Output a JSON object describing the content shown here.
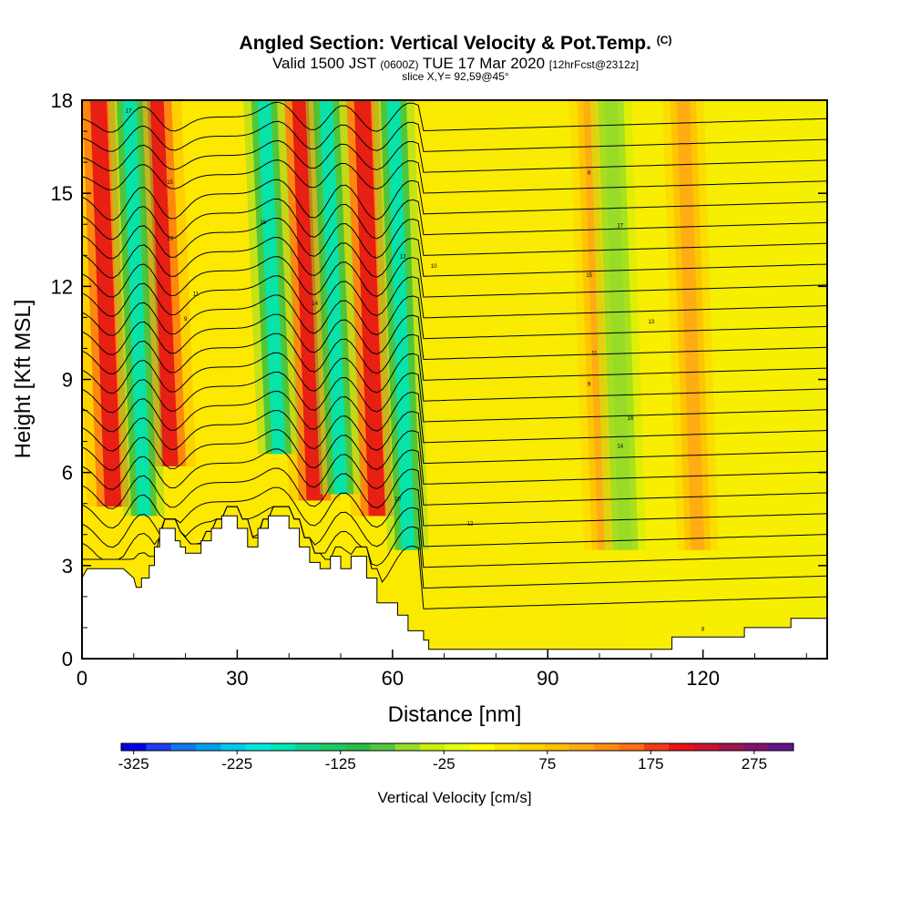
{
  "header": {
    "title_main": "Angled Section: Vertical Velocity & Pot.Temp.",
    "title_mark": "(C)",
    "valid_prefix": "Valid 1500 JST",
    "valid_utc": "(0600Z)",
    "valid_date": "TUE 17 Mar 2020",
    "valid_fcst": "[12hrFcst@2312z]",
    "slice": "slice X,Y= 92,59@45°"
  },
  "chart_data": {
    "type": "heatmap",
    "title": "Angled Section: Vertical Velocity & Pot.Temp.",
    "xlabel": "Distance [nm]",
    "ylabel": "Height [Kft MSL]",
    "xlim": [
      0,
      144
    ],
    "ylim": [
      0,
      18
    ],
    "x_ticks": [
      "0",
      "30",
      "60",
      "90",
      "120"
    ],
    "x_tick_values": [
      0,
      30,
      60,
      90,
      120
    ],
    "y_ticks": [
      "0",
      "3",
      "6",
      "9",
      "12",
      "15",
      "18"
    ],
    "y_tick_values": [
      0,
      3,
      6,
      9,
      12,
      15,
      18
    ],
    "colorbar": {
      "label": "Vertical Velocity [cm/s]",
      "tick_labels": [
        "-325",
        "-225",
        "-125",
        "-25",
        "75",
        "175",
        "275"
      ],
      "tick_values": [
        -325,
        -225,
        -125,
        -25,
        75,
        175,
        275
      ],
      "range": [
        -325,
        325
      ],
      "colors": [
        "#0000e6",
        "#1e3cf0",
        "#1478f0",
        "#00a0f0",
        "#00c8f0",
        "#00e6dc",
        "#00e6b4",
        "#14d28c",
        "#1ec864",
        "#28be46",
        "#50c83c",
        "#96dc28",
        "#c8f00a",
        "#e6ff14",
        "#ffff00",
        "#ffe600",
        "#ffd200",
        "#ffbe00",
        "#ffaa14",
        "#ff8c14",
        "#ff6e14",
        "#f03c14",
        "#e61414",
        "#c81432",
        "#a01450",
        "#82146e",
        "#64148c"
      ]
    },
    "updrafts_nm": [
      6,
      17,
      45,
      57,
      101,
      119
    ],
    "downdrafts_nm": [
      12,
      38,
      50,
      63,
      105
    ],
    "terrain_kft": [
      [
        0,
        2.6
      ],
      [
        1,
        2.9
      ],
      [
        8,
        2.9
      ],
      [
        10,
        2.6
      ],
      [
        10.5,
        2.3
      ],
      [
        11.5,
        2.3
      ],
      [
        11.5,
        2.6
      ],
      [
        13,
        2.6
      ],
      [
        13,
        3.0
      ],
      [
        14,
        3.0
      ],
      [
        14,
        3.6
      ],
      [
        15,
        3.6
      ],
      [
        15,
        4.2
      ],
      [
        18,
        4.2
      ],
      [
        18,
        3.8
      ],
      [
        19,
        3.8
      ],
      [
        19,
        3.6
      ],
      [
        20,
        3.6
      ],
      [
        20,
        3.4
      ],
      [
        23,
        3.4
      ],
      [
        23,
        3.8
      ],
      [
        25,
        3.8
      ],
      [
        25,
        4.2
      ],
      [
        27,
        4.2
      ],
      [
        27,
        4.6
      ],
      [
        30,
        4.6
      ],
      [
        30,
        4.2
      ],
      [
        32,
        4.2
      ],
      [
        32,
        3.6
      ],
      [
        34,
        3.6
      ],
      [
        34,
        4.2
      ],
      [
        36,
        4.2
      ],
      [
        36,
        4.6
      ],
      [
        40,
        4.6
      ],
      [
        40,
        4.2
      ],
      [
        42,
        4.2
      ],
      [
        42,
        3.6
      ],
      [
        44,
        3.6
      ],
      [
        44,
        3.1
      ],
      [
        46,
        3.1
      ],
      [
        46,
        2.9
      ],
      [
        48,
        2.9
      ],
      [
        48,
        3.3
      ],
      [
        50,
        3.3
      ],
      [
        50,
        2.9
      ],
      [
        52,
        2.9
      ],
      [
        52,
        3.3
      ],
      [
        55,
        3.3
      ],
      [
        55,
        2.6
      ],
      [
        57,
        2.6
      ],
      [
        57,
        1.8
      ],
      [
        61,
        1.8
      ],
      [
        61,
        1.4
      ],
      [
        63,
        1.4
      ],
      [
        63,
        0.9
      ],
      [
        66,
        0.9
      ],
      [
        66,
        0.6
      ],
      [
        67,
        0.6
      ],
      [
        67,
        0.3
      ],
      [
        114,
        0.3
      ],
      [
        114,
        0.7
      ],
      [
        128,
        0.7
      ],
      [
        128,
        1.0
      ],
      [
        137,
        1.0
      ],
      [
        137,
        1.3
      ],
      [
        144,
        1.3
      ]
    ],
    "isentrope_labels": [
      "17",
      "15",
      "13",
      "11",
      "9",
      "16",
      "14",
      "12",
      "10",
      "8"
    ]
  }
}
